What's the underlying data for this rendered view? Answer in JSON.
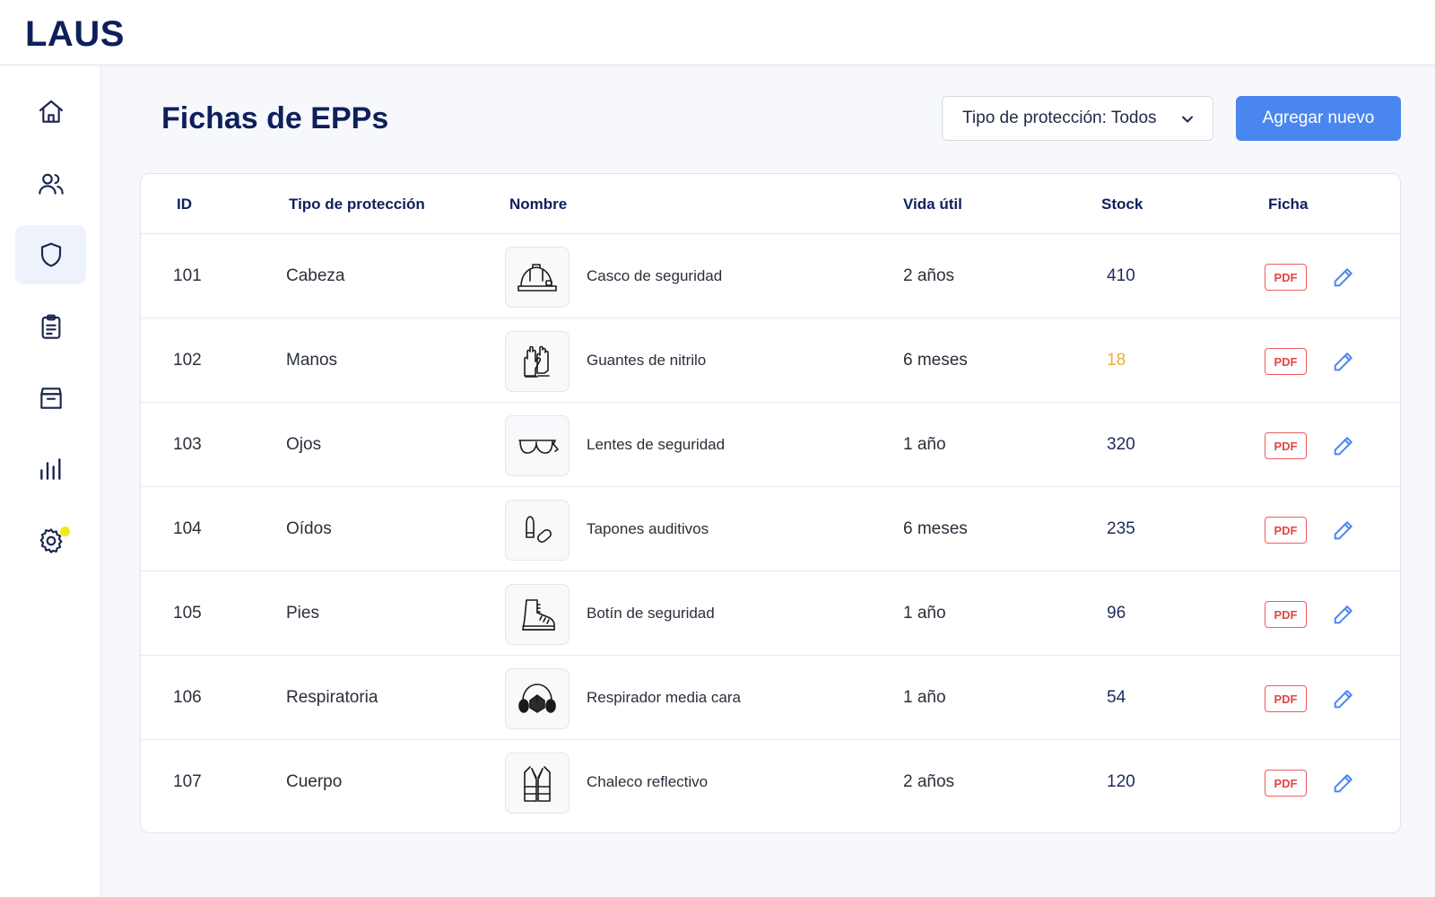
{
  "app": {
    "logo": "LAUS"
  },
  "colors": {
    "primary": "#4a86f0",
    "navy": "#0f1f5c",
    "warning": "#f2a93b",
    "danger": "#e24646",
    "notification": "#f1ea1a"
  },
  "sidebar": {
    "items": [
      {
        "icon": "home-icon",
        "active": false
      },
      {
        "icon": "users-icon",
        "active": false
      },
      {
        "icon": "shield-icon",
        "active": true
      },
      {
        "icon": "clipboard-icon",
        "active": false
      },
      {
        "icon": "archive-box-icon",
        "active": false
      },
      {
        "icon": "bar-chart-icon",
        "active": false
      },
      {
        "icon": "settings-gear-icon",
        "active": false,
        "notification": true
      }
    ]
  },
  "header": {
    "title": "Fichas de EPPs",
    "filter_label": "Tipo de protección: Todos",
    "add_label": "Agregar nuevo"
  },
  "table": {
    "columns": {
      "id": "ID",
      "tipo": "Tipo de protección",
      "nombre": "Nombre",
      "vida": "Vida útil",
      "stock": "Stock",
      "ficha": "Ficha"
    },
    "pdf_label": "PDF",
    "rows": [
      {
        "id": "101",
        "tipo": "Cabeza",
        "nombre": "Casco de seguridad",
        "vida": "2 años",
        "stock": "410",
        "low": false,
        "icon": "helmet-icon"
      },
      {
        "id": "102",
        "tipo": "Manos",
        "nombre": "Guantes de nitrilo",
        "vida": "6 meses",
        "stock": "18",
        "low": true,
        "icon": "gloves-icon"
      },
      {
        "id": "103",
        "tipo": "Ojos",
        "nombre": "Lentes de seguridad",
        "vida": "1 año",
        "stock": "320",
        "low": false,
        "icon": "safety-glasses-icon"
      },
      {
        "id": "104",
        "tipo": "Oídos",
        "nombre": "Tapones auditivos",
        "vida": "6 meses",
        "stock": "235",
        "low": false,
        "icon": "earplugs-icon"
      },
      {
        "id": "105",
        "tipo": "Pies",
        "nombre": "Botín de seguridad",
        "vida": "1 año",
        "stock": "96",
        "low": false,
        "icon": "safety-boot-icon"
      },
      {
        "id": "106",
        "tipo": "Respiratoria",
        "nombre": "Respirador media cara",
        "vida": "1 año",
        "stock": "54",
        "low": false,
        "icon": "respirator-icon"
      },
      {
        "id": "107",
        "tipo": "Cuerpo",
        "nombre": "Chaleco reflectivo",
        "vida": "2 años",
        "stock": "120",
        "low": false,
        "icon": "reflective-vest-icon"
      }
    ]
  }
}
